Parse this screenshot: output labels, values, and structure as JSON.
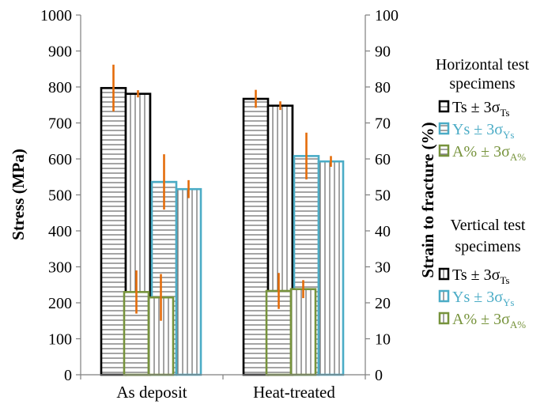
{
  "chart_data": {
    "type": "bar",
    "categories": [
      "As deposit",
      "Heat-treated"
    ],
    "ylabel_left": "Stress (MPa)",
    "ylabel_right": "Strain to fracture (%)",
    "ylim_left": [
      0,
      1000
    ],
    "ylim_right": [
      0,
      100
    ],
    "yticks_left": [
      "0",
      "100",
      "200",
      "300",
      "400",
      "500",
      "600",
      "700",
      "800",
      "900",
      "1000"
    ],
    "yticks_right": [
      "0",
      "10",
      "20",
      "30",
      "40",
      "50",
      "60",
      "70",
      "80",
      "90",
      "100"
    ],
    "grid": false,
    "legend_position": "right",
    "colors": {
      "ts": "#000000",
      "ys": "#4bacc6",
      "a": "#77933c",
      "error": "#e46c0a",
      "axis": "#7f7f7f"
    },
    "legend": {
      "horizontal_title": [
        "Horizontal test",
        "specimens"
      ],
      "vertical_title": [
        "Vertical test",
        "specimens"
      ],
      "ts": {
        "base": "Ts ± 3σ",
        "sub": "Ts"
      },
      "ys": {
        "base": "Ys ± 3σ",
        "sub": "Ys"
      },
      "a": {
        "base": "A% ± 3σ",
        "sub": "A%"
      }
    },
    "series": [
      {
        "metric": "ts",
        "orientation": "horizontal",
        "axis": "left",
        "values": [
          797,
          767
        ],
        "error": [
          65,
          25
        ]
      },
      {
        "metric": "ts",
        "orientation": "vertical",
        "axis": "left",
        "values": [
          781,
          748
        ],
        "error": [
          10,
          12
        ]
      },
      {
        "metric": "ys",
        "orientation": "horizontal",
        "axis": "left",
        "values": [
          536,
          608
        ],
        "error": [
          77,
          65
        ]
      },
      {
        "metric": "ys",
        "orientation": "vertical",
        "axis": "left",
        "values": [
          516,
          593
        ],
        "error": [
          25,
          15
        ]
      },
      {
        "metric": "a",
        "orientation": "horizontal",
        "axis": "right",
        "values": [
          23,
          23.3
        ],
        "error": [
          6,
          5
        ]
      },
      {
        "metric": "a",
        "orientation": "vertical",
        "axis": "right",
        "values": [
          21.5,
          23.8
        ],
        "error": [
          6.5,
          2.5
        ]
      }
    ]
  }
}
